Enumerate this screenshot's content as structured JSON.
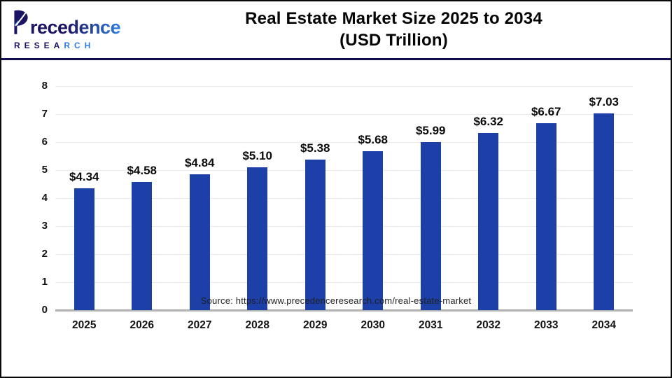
{
  "header": {
    "logo": {
      "brand_word": "recedence",
      "brand_sub_navy": "RESEA",
      "brand_sub_blue": "RCH",
      "navy": "#1b1464",
      "blue": "#2f7de1"
    },
    "title_line1": "Real Estate Market Size 2025 to 2034",
    "title_line2": "(USD Trillion)"
  },
  "chart_data": {
    "type": "bar",
    "title": "Real Estate Market Size 2025 to 2034 (USD Trillion)",
    "categories": [
      "2025",
      "2026",
      "2027",
      "2028",
      "2029",
      "2030",
      "2031",
      "2032",
      "2033",
      "2034"
    ],
    "values": [
      4.34,
      4.58,
      4.84,
      5.1,
      5.38,
      5.68,
      5.99,
      6.32,
      6.67,
      7.03
    ],
    "value_labels": [
      "$4.34",
      "$4.58",
      "$4.84",
      "$5.10",
      "$5.38",
      "$5.68",
      "$5.99",
      "$6.32",
      "$6.67",
      "$7.03"
    ],
    "xlabel": "",
    "ylabel": "",
    "ylim": [
      0,
      8
    ],
    "ytick_step": 1,
    "yticks": [
      "0",
      "1",
      "2",
      "3",
      "4",
      "5",
      "6",
      "7",
      "8"
    ],
    "grid": true,
    "legend": "none",
    "bar_color": "#1c3fa8",
    "gridline_color": "#ebebeb",
    "axis_line_color": "#b0b0b0"
  },
  "footer": {
    "source": "Source: https://www.precedenceresearch.com/real-estate-market"
  }
}
